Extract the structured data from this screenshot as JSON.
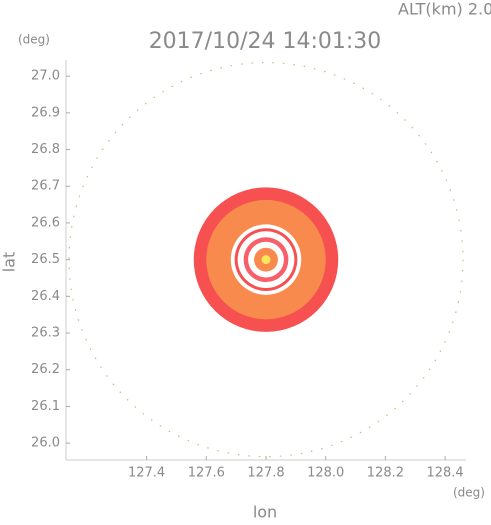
{
  "chart_data": {
    "type": "rings",
    "title": "2017/10/24 14:01:30",
    "subtitle": "ALT(km)  2.0",
    "x_label": "lon",
    "y_label": "lat",
    "x_unit": "(deg)",
    "y_unit": "(deg)",
    "xlim": [
      127.13,
      128.47
    ],
    "ylim": [
      25.954,
      27.044
    ],
    "xticks": [
      127.4,
      127.6,
      127.8,
      {
        "value": 128,
        "label": "128.0"
      },
      128.2,
      128.4
    ],
    "yticks": [
      {
        "value": 26,
        "label": "26.0"
      },
      26.1,
      26.2,
      26.3,
      26.4,
      26.5,
      26.6,
      26.7,
      26.8,
      26.9,
      {
        "value": 27,
        "label": "27.0"
      }
    ],
    "center_lon": 127.8,
    "center_lat": 26.5,
    "range_ring": {
      "radius": 0.66,
      "color": "#9fd27a"
    },
    "rings": [
      {
        "radius": 0.242,
        "color": "#f75050"
      },
      {
        "radius": 0.2,
        "color": "#f98a4e"
      },
      {
        "radius": 0.118,
        "color": "#ffffff"
      },
      {
        "radius": 0.105,
        "color": "#f75050"
      },
      {
        "radius": 0.095,
        "color": "#ffffff"
      },
      {
        "radius": 0.075,
        "color": "#f7606a"
      },
      {
        "radius": 0.06,
        "color": "#ffffff"
      },
      {
        "radius": 0.04,
        "color": "#f98a4e"
      },
      {
        "radius": 0.015,
        "color": "#f7e85a"
      }
    ]
  }
}
